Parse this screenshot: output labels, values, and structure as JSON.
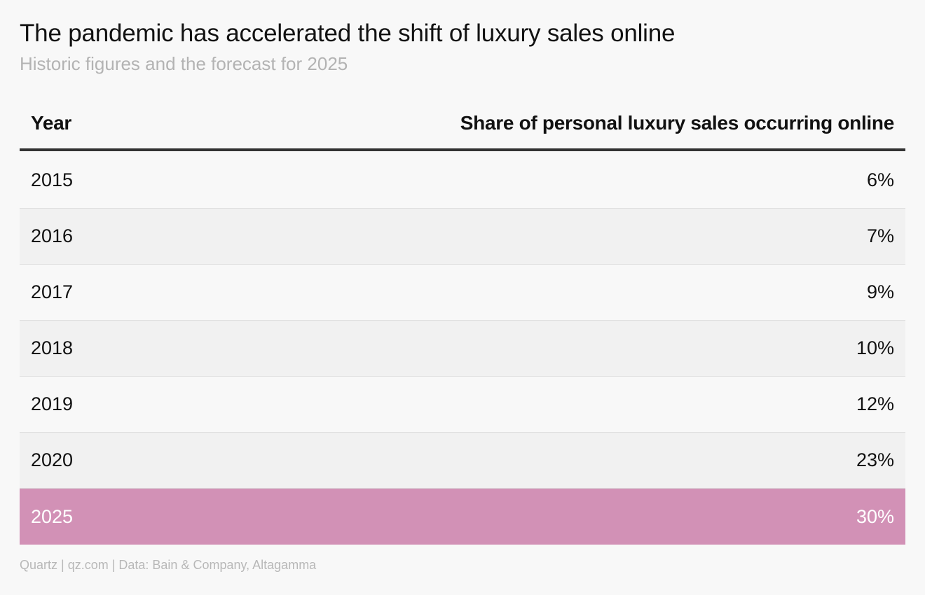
{
  "title": "The pandemic has accelerated the shift of luxury sales online",
  "subtitle": "Historic figures and the forecast for 2025",
  "footer": "Quartz | qz.com | Data: Bain & Company, Altagamma",
  "colors": {
    "background": "#f8f8f8",
    "highlight": "#d291b6",
    "header_rule": "#333333"
  },
  "chart_data": {
    "type": "table",
    "columns": [
      "Year",
      "Share of personal luxury sales occurring online"
    ],
    "rows": [
      {
        "year": "2015",
        "share": "6%",
        "value": 6
      },
      {
        "year": "2016",
        "share": "7%",
        "value": 7
      },
      {
        "year": "2017",
        "share": "9%",
        "value": 9
      },
      {
        "year": "2018",
        "share": "10%",
        "value": 10
      },
      {
        "year": "2019",
        "share": "12%",
        "value": 12
      },
      {
        "year": "2020",
        "share": "23%",
        "value": 23
      },
      {
        "year": "2025",
        "share": "30%",
        "value": 30,
        "highlighted": true
      }
    ]
  }
}
